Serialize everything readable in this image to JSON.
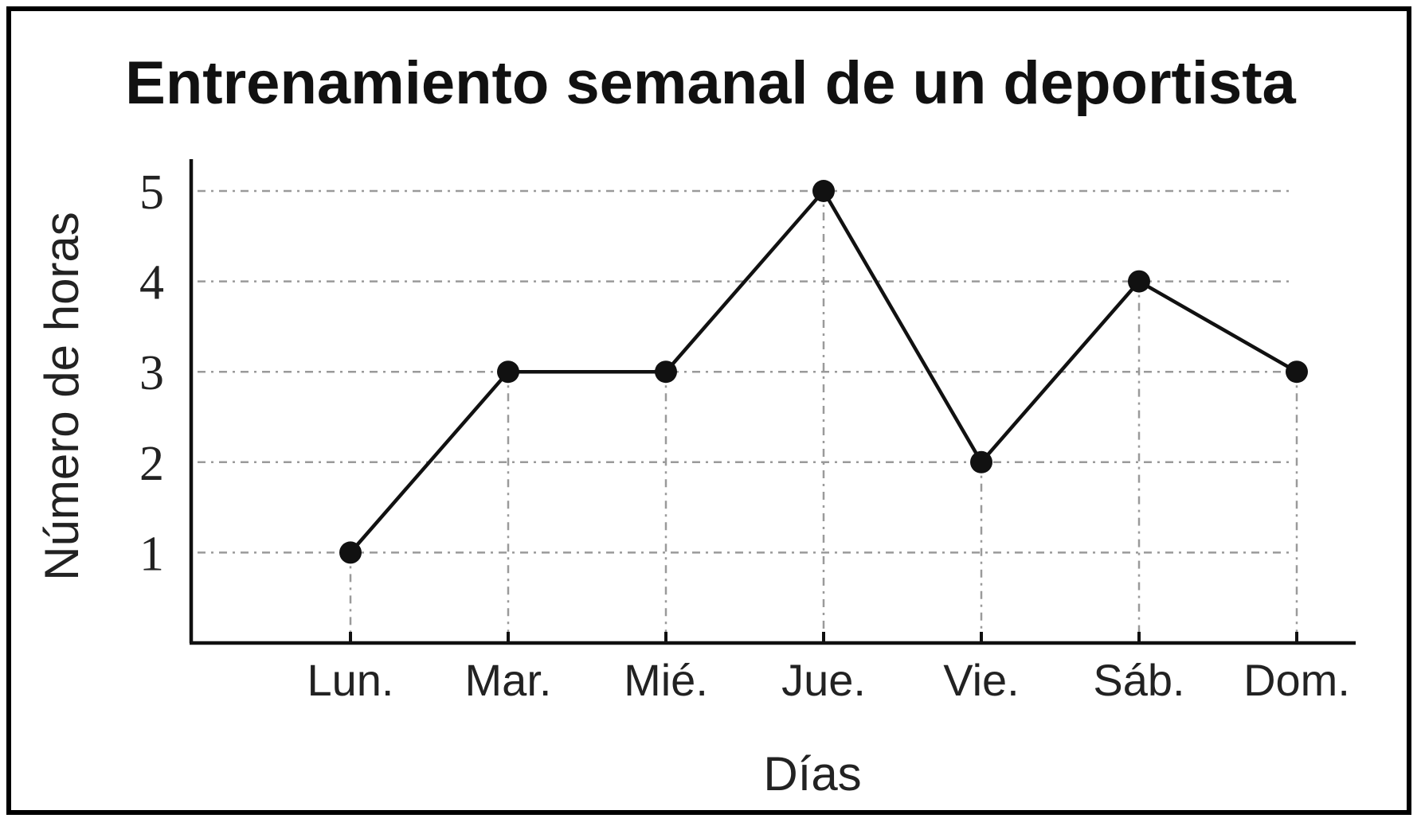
{
  "chart_data": {
    "type": "line",
    "title": "Entrenamiento semanal de un deportista",
    "xlabel": "Días",
    "ylabel": "Número de horas",
    "categories": [
      "Lun.",
      "Mar.",
      "Mié.",
      "Jue.",
      "Vie.",
      "Sáb.",
      "Dom."
    ],
    "yticks": [
      "1",
      "2",
      "3",
      "4",
      "5"
    ],
    "ylim": [
      0,
      5
    ],
    "grid": true,
    "legend": "none",
    "series": [
      {
        "values": [
          1,
          3,
          3,
          5,
          2,
          4,
          3
        ],
        "color": "#111111"
      }
    ]
  }
}
